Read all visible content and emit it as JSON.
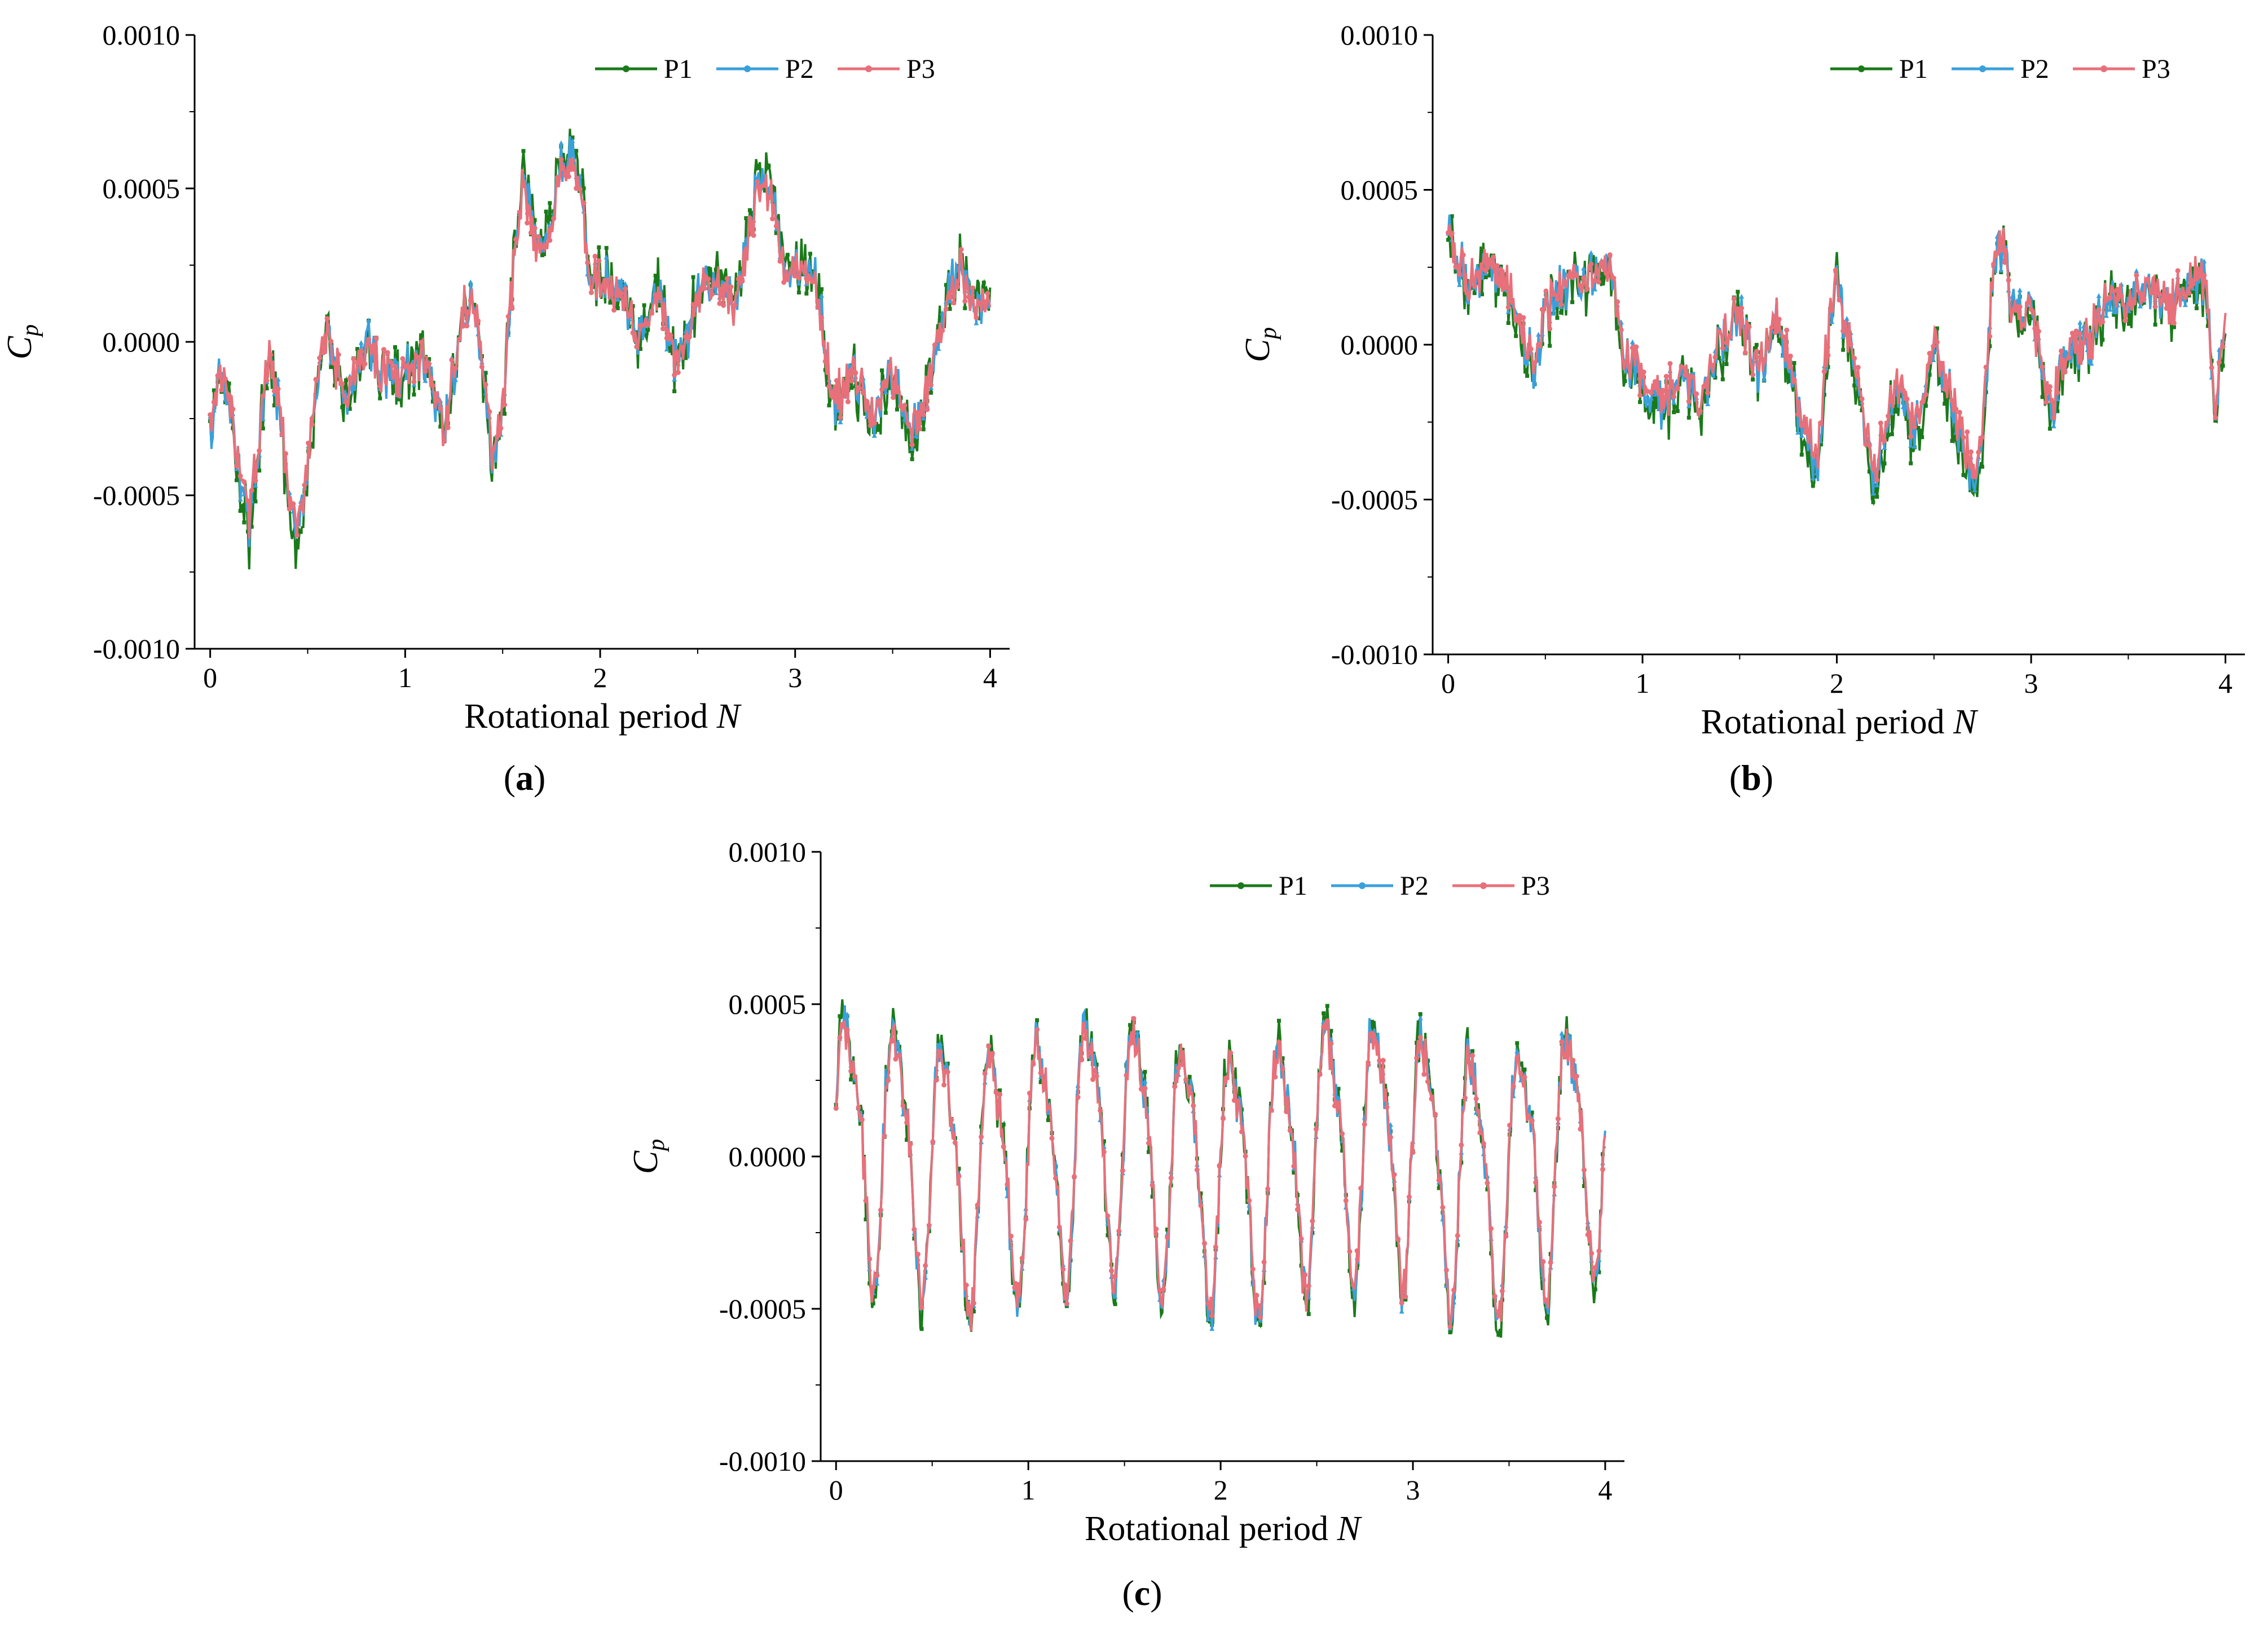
{
  "colors": {
    "P1": "#1a7a1a",
    "P2": "#3aa0dc",
    "P3": "#e8707a",
    "axis": "#000000"
  },
  "chart_data": [
    {
      "panel": "a",
      "panel_label_text": "(",
      "panel_label_letter": "a",
      "panel_label_close": ")",
      "type": "line",
      "xlabel": "Rotational period",
      "xlabel_var": "N",
      "ylabel": "C",
      "ylabel_sub": "p",
      "xlim": [
        -0.08,
        4.1
      ],
      "ylim": [
        -0.001,
        0.001
      ],
      "xticks": [
        "0",
        "1",
        "2",
        "3",
        "4"
      ],
      "yticks": [
        "-0.0010",
        "-0.0005",
        "0.0000",
        "0.0005",
        "0.0010"
      ],
      "legend": [
        "P1",
        "P2",
        "P3"
      ],
      "legend_position": "top-right",
      "envelope": {
        "x": [
          0,
          0.05,
          0.1,
          0.15,
          0.2,
          0.25,
          0.3,
          0.35,
          0.4,
          0.45,
          0.5,
          0.55,
          0.6,
          0.65,
          0.7,
          0.8,
          0.9,
          1.0,
          1.1,
          1.2,
          1.3,
          1.35,
          1.4,
          1.45,
          1.5,
          1.55,
          1.6,
          1.65,
          1.7,
          1.75,
          1.8,
          1.85,
          1.9,
          1.95,
          2.0,
          2.1,
          2.2,
          2.3,
          2.4,
          2.5,
          2.6,
          2.7,
          2.75,
          2.8,
          2.85,
          2.9,
          2.95,
          3.0,
          3.1,
          3.2,
          3.3,
          3.4,
          3.5,
          3.6,
          3.7,
          3.8,
          3.85,
          3.9,
          4.0
        ],
        "y": [
          -0.0003,
          -0.0001,
          -0.0002,
          -0.0004,
          -0.0006,
          -0.0003,
          -5e-05,
          -0.0002,
          -0.0005,
          -0.00065,
          -0.0004,
          -0.0001,
          0.0,
          -0.0001,
          -0.0002,
          0.0,
          -0.0001,
          -0.0001,
          -5e-05,
          -0.0003,
          0.0001,
          0.00015,
          -0.0001,
          -0.0004,
          -0.0002,
          0.0002,
          0.0005,
          0.0004,
          0.0003,
          0.0004,
          0.0006,
          0.00065,
          0.0005,
          0.0002,
          0.0002,
          0.00015,
          0.0,
          0.00015,
          -0.0001,
          0.00015,
          0.0002,
          0.0001,
          0.0003,
          0.0005,
          0.00055,
          0.0004,
          0.0002,
          0.00025,
          0.0002,
          -0.0002,
          -0.0001,
          -0.00025,
          -0.0001,
          -0.0003,
          -0.0001,
          0.0002,
          0.00025,
          0.0001,
          0.00015
        ]
      },
      "series": [
        {
          "name": "P1",
          "noise": 6.5e-05,
          "offset": 0.0,
          "scale": 1.08
        },
        {
          "name": "P2",
          "noise": 4e-05,
          "offset": 0.0,
          "scale": 1.0
        },
        {
          "name": "P3",
          "noise": 3.5e-05,
          "offset": 0.0,
          "scale": 0.97
        }
      ]
    },
    {
      "panel": "b",
      "panel_label_text": "(",
      "panel_label_letter": "b",
      "panel_label_close": ")",
      "type": "line",
      "xlabel": "Rotational period",
      "xlabel_var": "N",
      "ylabel": "C",
      "ylabel_sub": "p",
      "xlim": [
        -0.08,
        4.1
      ],
      "ylim": [
        -0.001,
        0.001
      ],
      "xticks": [
        "0",
        "1",
        "2",
        "3",
        "4"
      ],
      "yticks": [
        "-0.0010",
        "-0.0005",
        "0.0000",
        "0.0005",
        "0.0010"
      ],
      "legend": [
        "P1",
        "P2",
        "P3"
      ],
      "legend_position": "top-right",
      "envelope": {
        "x": [
          0,
          0.1,
          0.2,
          0.3,
          0.4,
          0.45,
          0.5,
          0.6,
          0.7,
          0.8,
          0.85,
          0.9,
          1.0,
          1.1,
          1.2,
          1.3,
          1.4,
          1.5,
          1.6,
          1.7,
          1.8,
          1.9,
          1.95,
          2.0,
          2.1,
          2.2,
          2.3,
          2.4,
          2.5,
          2.6,
          2.7,
          2.75,
          2.8,
          2.85,
          2.9,
          3.0,
          3.1,
          3.2,
          3.3,
          3.4,
          3.5,
          3.6,
          3.7,
          3.8,
          3.9,
          3.95,
          4.0
        ],
        "y": [
          0.00035,
          0.0002,
          0.00025,
          0.0002,
          0.0,
          -0.0001,
          0.0001,
          0.0002,
          0.0002,
          0.0003,
          0.0002,
          0.0,
          -0.00015,
          -0.0002,
          -0.0001,
          -0.0002,
          0.0,
          0.0001,
          -0.0001,
          0.0001,
          -0.0002,
          -0.0004,
          0.0,
          0.0002,
          -0.0001,
          -0.00045,
          -0.0001,
          -0.0003,
          0.0,
          -0.0002,
          -0.00045,
          -0.0003,
          0.0002,
          0.00035,
          0.0001,
          0.0001,
          -0.0002,
          0.0,
          0.0,
          0.00015,
          0.0001,
          0.0002,
          0.0001,
          0.0002,
          0.0002,
          -0.0002,
          0.0001
        ]
      },
      "series": [
        {
          "name": "P1",
          "noise": 6e-05,
          "offset": -2e-05,
          "scale": 1.05
        },
        {
          "name": "P2",
          "noise": 4e-05,
          "offset": 0.0,
          "scale": 1.0
        },
        {
          "name": "P3",
          "noise": 3.5e-05,
          "offset": 1e-05,
          "scale": 0.97
        }
      ]
    },
    {
      "panel": "c",
      "panel_label_text": "(",
      "panel_label_letter": "c",
      "panel_label_close": ")",
      "type": "line",
      "xlabel": "Rotational period",
      "xlabel_var": "N",
      "ylabel": "C",
      "ylabel_sub": "p",
      "xlim": [
        -0.08,
        4.1
      ],
      "ylim": [
        -0.001,
        0.001
      ],
      "xticks": [
        "0",
        "1",
        "2",
        "3",
        "4"
      ],
      "yticks": [
        "-0.0010",
        "-0.0005",
        "0.0000",
        "0.0005",
        "0.0010"
      ],
      "legend": [
        "P1",
        "P2",
        "P3"
      ],
      "legend_position": "top-right",
      "periodic": {
        "cycles": 16,
        "amplitude": 0.0004,
        "harmonic": 0.0001
      },
      "envelope": {
        "x": [
          0,
          4.0
        ],
        "y": [
          0.0,
          0.0
        ]
      },
      "series": [
        {
          "name": "P1",
          "noise": 4e-05,
          "offset": 0.0,
          "scale": 1.05
        },
        {
          "name": "P2",
          "noise": 3e-05,
          "offset": 0.0,
          "scale": 1.0
        },
        {
          "name": "P3",
          "noise": 3e-05,
          "offset": 0.0,
          "scale": 0.97
        }
      ]
    }
  ]
}
